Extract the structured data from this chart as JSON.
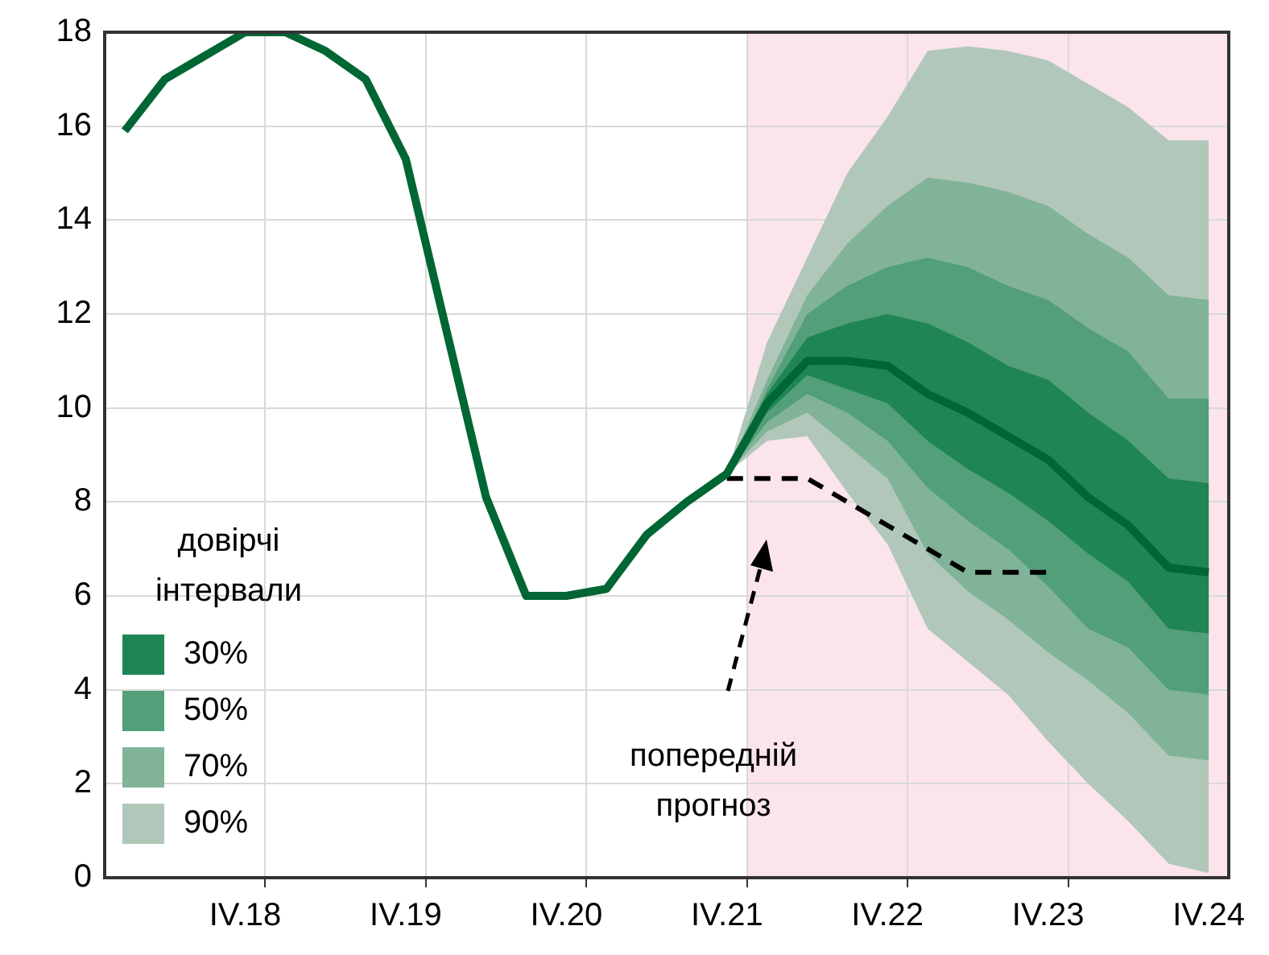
{
  "chart_data": {
    "type": "line",
    "categories": [
      null,
      null,
      null,
      "IV.18",
      null,
      null,
      null,
      "IV.19",
      null,
      null,
      null,
      "IV.20",
      null,
      null,
      null,
      "IV.21",
      null,
      null,
      null,
      "IV.22",
      null,
      null,
      null,
      "IV.23",
      null,
      null,
      null,
      "IV.24"
    ],
    "series": [
      {
        "type": "area",
        "name": "90%",
        "color": "#b1c7ba",
        "values": [
          null,
          null,
          null,
          null,
          null,
          null,
          null,
          null,
          null,
          null,
          null,
          null,
          null,
          null,
          null,
          null,
          null,
          null,
          null,
          null,
          null,
          null,
          null,
          null,
          null,
          null,
          null,
          null
        ],
        "lower": [
          null,
          null,
          null,
          null,
          null,
          null,
          null,
          null,
          null,
          null,
          null,
          null,
          null,
          null,
          null,
          8.6,
          9.3,
          9.4,
          8.2,
          7.1,
          5.3,
          4.6,
          3.9,
          2.9,
          2.0,
          1.2,
          0.3,
          0.1
        ],
        "upper": [
          null,
          null,
          null,
          null,
          null,
          null,
          null,
          null,
          null,
          null,
          null,
          null,
          null,
          null,
          null,
          8.6,
          11.4,
          13.2,
          15.0,
          16.2,
          17.6,
          17.7,
          17.6,
          17.4,
          16.9,
          16.4,
          15.7,
          15.7
        ]
      },
      {
        "type": "area",
        "name": "70%",
        "color": "#80b398",
        "values": [
          null,
          null,
          null,
          null,
          null,
          null,
          null,
          null,
          null,
          null,
          null,
          null,
          null,
          null,
          null,
          null,
          null,
          null,
          null,
          null,
          null,
          null,
          null,
          null,
          null,
          null,
          null,
          null
        ],
        "lower": [
          null,
          null,
          null,
          null,
          null,
          null,
          null,
          null,
          null,
          null,
          null,
          null,
          null,
          null,
          null,
          8.6,
          9.5,
          9.9,
          9.2,
          8.5,
          6.9,
          6.1,
          5.5,
          4.8,
          4.2,
          3.5,
          2.6,
          2.5
        ],
        "upper": [
          null,
          null,
          null,
          null,
          null,
          null,
          null,
          null,
          null,
          null,
          null,
          null,
          null,
          null,
          null,
          8.6,
          10.6,
          12.4,
          13.5,
          14.3,
          14.9,
          14.8,
          14.6,
          14.3,
          13.7,
          13.2,
          12.4,
          12.3
        ]
      },
      {
        "type": "area",
        "name": "50%",
        "color": "#529f79",
        "values": [
          null,
          null,
          null,
          null,
          null,
          null,
          null,
          null,
          null,
          null,
          null,
          null,
          null,
          null,
          null,
          null,
          null,
          null,
          null,
          null,
          null,
          null,
          null,
          null,
          null,
          null,
          null,
          null
        ],
        "lower": [
          null,
          null,
          null,
          null,
          null,
          null,
          null,
          null,
          null,
          null,
          null,
          null,
          null,
          null,
          null,
          8.6,
          9.7,
          10.3,
          9.9,
          9.3,
          8.3,
          7.6,
          7.0,
          6.2,
          5.3,
          4.9,
          4.0,
          3.9
        ],
        "upper": [
          null,
          null,
          null,
          null,
          null,
          null,
          null,
          null,
          null,
          null,
          null,
          null,
          null,
          null,
          null,
          8.6,
          10.4,
          12.0,
          12.6,
          13.0,
          13.2,
          13.0,
          12.6,
          12.3,
          11.7,
          11.2,
          10.2,
          10.2
        ]
      },
      {
        "type": "area",
        "name": "30%",
        "color": "#1f8553",
        "values": [
          null,
          null,
          null,
          null,
          null,
          null,
          null,
          null,
          null,
          null,
          null,
          null,
          null,
          null,
          null,
          null,
          null,
          null,
          null,
          null,
          null,
          null,
          null,
          null,
          null,
          null,
          null,
          null
        ],
        "lower": [
          null,
          null,
          null,
          null,
          null,
          null,
          null,
          null,
          null,
          null,
          null,
          null,
          null,
          null,
          null,
          8.6,
          9.9,
          10.7,
          10.4,
          10.1,
          9.3,
          8.7,
          8.2,
          7.6,
          6.9,
          6.3,
          5.3,
          5.2
        ],
        "upper": [
          null,
          null,
          null,
          null,
          null,
          null,
          null,
          null,
          null,
          null,
          null,
          null,
          null,
          null,
          null,
          8.6,
          10.3,
          11.5,
          11.8,
          12.0,
          11.8,
          11.4,
          10.9,
          10.6,
          9.9,
          9.3,
          8.5,
          8.4
        ]
      },
      {
        "type": "line",
        "color": "#006633",
        "values": [
          15.9,
          17.0,
          17.5,
          18.0,
          18.0,
          17.6,
          17.0,
          15.3,
          11.7,
          8.1,
          6.0,
          6.0,
          6.15,
          7.3,
          8.0,
          8.6,
          10.1,
          11.0,
          11.0,
          10.9,
          10.3,
          9.9,
          9.4,
          8.9,
          8.1,
          7.5,
          6.6,
          6.5
        ]
      },
      {
        "type": "line",
        "color": "#000000",
        "line_style": "dashed",
        "values": [
          null,
          null,
          null,
          null,
          null,
          null,
          null,
          null,
          null,
          null,
          null,
          null,
          null,
          null,
          null,
          8.5,
          8.5,
          8.5,
          8.0,
          7.5,
          7.0,
          6.5,
          6.5,
          6.5,
          null,
          null,
          null,
          null
        ]
      }
    ],
    "ylim": [
      0,
      18
    ],
    "yticks": [
      0,
      2,
      4,
      6,
      8,
      10,
      12,
      14,
      16,
      18
    ],
    "grid": true,
    "bands": [
      {
        "axis": "x",
        "from": "IV.21",
        "to": "IV.24",
        "color": "#fbe4ec"
      }
    ],
    "legend": "bottom left",
    "legend_title": "довірчі інтервали",
    "annotations": [
      "попередній прогноз"
    ]
  }
}
